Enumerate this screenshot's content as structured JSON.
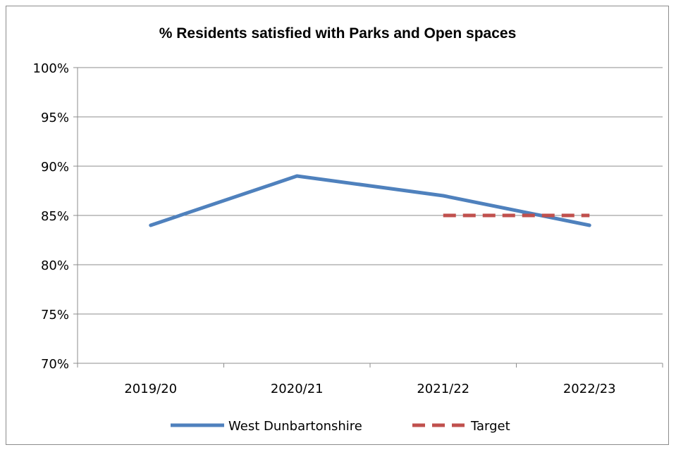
{
  "chart_data": {
    "type": "line",
    "title": "% Residents satisfied with Parks and Open spaces",
    "categories": [
      "2019/20",
      "2020/21",
      "2021/22",
      "2022/23"
    ],
    "y_tick_labels": [
      "70%",
      "75%",
      "80%",
      "85%",
      "90%",
      "95%",
      "100%"
    ],
    "ylim": [
      70,
      100
    ],
    "y_step": 5,
    "grid": true,
    "legend_position": "bottom",
    "series": [
      {
        "name": "West Dunbartonshire",
        "values": [
          84,
          89,
          87,
          84
        ],
        "color": "#4F81BD",
        "style": "solid"
      },
      {
        "name": "Target",
        "values": [
          null,
          null,
          85,
          85
        ],
        "color": "#C0504D",
        "style": "dashed"
      }
    ]
  }
}
